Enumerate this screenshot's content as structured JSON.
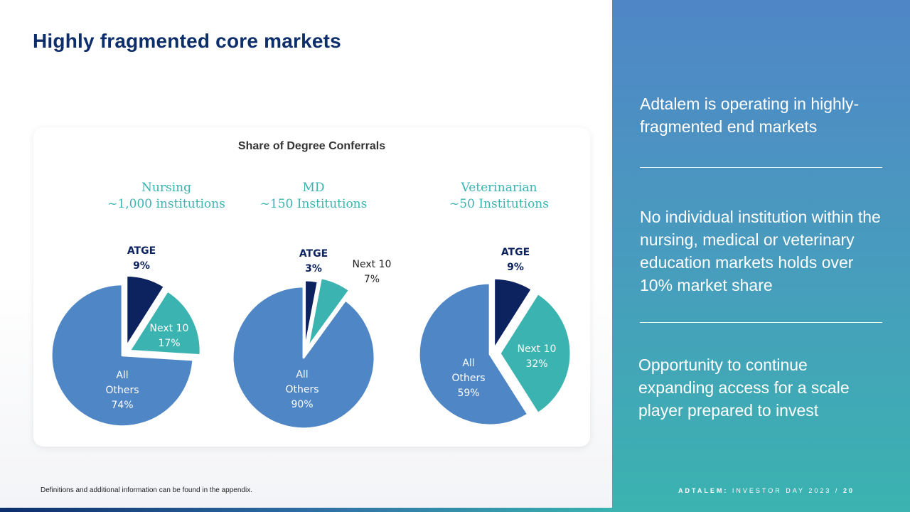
{
  "slide": {
    "title": "Highly fragmented core markets",
    "footnote": "Definitions and additional information can be found in the appendix."
  },
  "card": {
    "title": "Share of Degree Conferrals"
  },
  "chart_data": [
    {
      "type": "pie",
      "title": "Nursing",
      "subtitle": "~1,000 institutions",
      "slices": [
        {
          "label": "ATGE",
          "value": 9,
          "value_label": "9%",
          "color": "#0d2360"
        },
        {
          "label": "Next 10",
          "value": 17,
          "value_label": "17%",
          "color": "#3bb3b0"
        },
        {
          "label": "All Others",
          "value": 74,
          "value_label": "74%",
          "color": "#4f86c6"
        }
      ]
    },
    {
      "type": "pie",
      "title": "MD",
      "subtitle": "~150 Institutions",
      "slices": [
        {
          "label": "ATGE",
          "value": 3,
          "value_label": "3%",
          "color": "#0d2360"
        },
        {
          "label": "Next 10",
          "value": 7,
          "value_label": "7%",
          "color": "#3bb3b0"
        },
        {
          "label": "All Others",
          "value": 90,
          "value_label": "90%",
          "color": "#4f86c6"
        }
      ]
    },
    {
      "type": "pie",
      "title": "Veterinarian",
      "subtitle": "~50 Institutions",
      "slices": [
        {
          "label": "ATGE",
          "value": 9,
          "value_label": "9%",
          "color": "#0d2360"
        },
        {
          "label": "Next 10",
          "value": 32,
          "value_label": "32%",
          "color": "#3bb3b0"
        },
        {
          "label": "All Others",
          "value": 59,
          "value_label": "59%",
          "color": "#4f86c6"
        }
      ]
    }
  ],
  "panel": {
    "point1": "Adtalem is operating in highly-fragmented end markets",
    "point2": "No individual institution within the nursing, medical or veterinary education markets holds over 10% market share",
    "point3": "Opportunity to continue expanding access for a scale player prepared to invest",
    "footer_brand": "ADTALEM:",
    "footer_event": "INVESTOR DAY 2023",
    "footer_sep": "/",
    "footer_page": "20"
  }
}
